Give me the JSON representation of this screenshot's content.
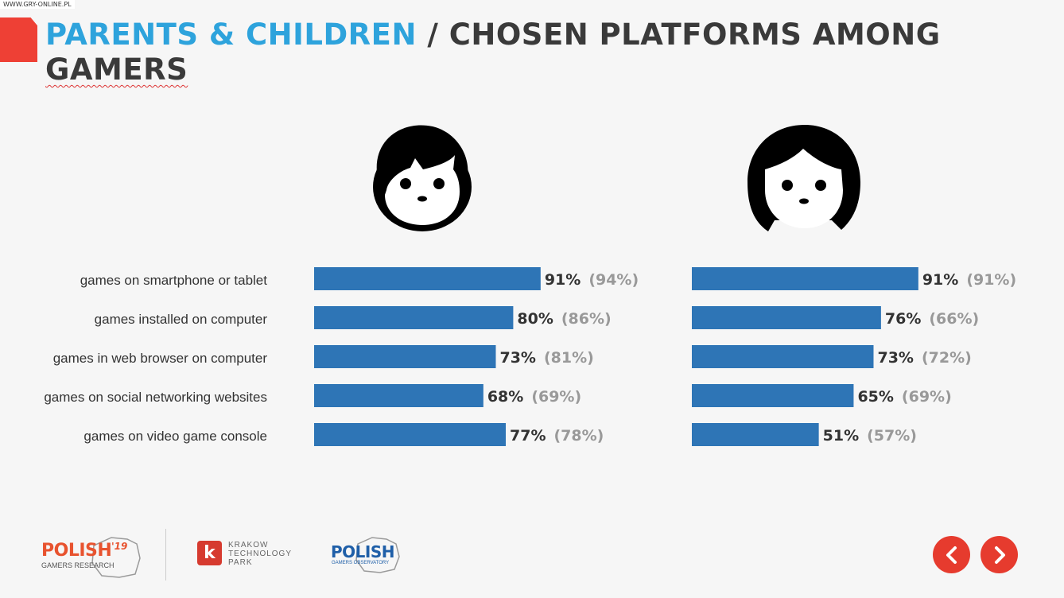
{
  "watermark": "WWW.GRY-ONLINE.PL",
  "title": {
    "highlight": "PARENTS & CHILDREN",
    "separator": "/",
    "rest": "CHOSEN PLATFORMS AMONG",
    "last": "GAMERS"
  },
  "icons": {
    "boy": "boy-face-icon",
    "girl": "girl-face-icon",
    "prev": "chevron-left-icon",
    "next": "chevron-right-icon"
  },
  "colors": {
    "bar": "#2e75b6",
    "title_highlight": "#2ea3dc",
    "accent": "#e63b2e",
    "prev_value": "#999999"
  },
  "chart_data": [
    {
      "type": "bar",
      "orientation": "horizontal",
      "panel": "boys",
      "categories": [
        "games on smartphone or tablet",
        "games installed on computer",
        "games in web browser on computer",
        "games on social networking websites",
        "games on video game console"
      ],
      "values": [
        91,
        80,
        73,
        68,
        77
      ],
      "value_labels": [
        "91%",
        "80%",
        "73%",
        "68%",
        "77%"
      ],
      "previous_labels": [
        "(94%)",
        "(86%)",
        "(81%)",
        "(69%)",
        "(78%)"
      ],
      "unit": "%"
    },
    {
      "type": "bar",
      "orientation": "horizontal",
      "panel": "girls",
      "categories": [
        "games on smartphone or tablet",
        "games installed on computer",
        "games in web browser on computer",
        "games on social networking websites",
        "games on video game console"
      ],
      "values": [
        91,
        76,
        73,
        65,
        51
      ],
      "value_labels": [
        "91%",
        "76%",
        "73%",
        "65%",
        "51%"
      ],
      "previous_labels": [
        "(91%)",
        "(66%)",
        "(72%)",
        "(69%)",
        "(57%)"
      ],
      "unit": "%"
    }
  ],
  "footer": {
    "logo1_name": "POLISH",
    "logo1_year": "'19",
    "logo1_sub": "GAMERS RESEARCH",
    "logo2_mark": "k",
    "logo2_line1": "KRAKOW",
    "logo2_line2": "TECHNOLOGY",
    "logo2_line3": "PARK",
    "logo3_name": "POLISH",
    "logo3_sub": "GAMERS OBSERVATORY"
  }
}
